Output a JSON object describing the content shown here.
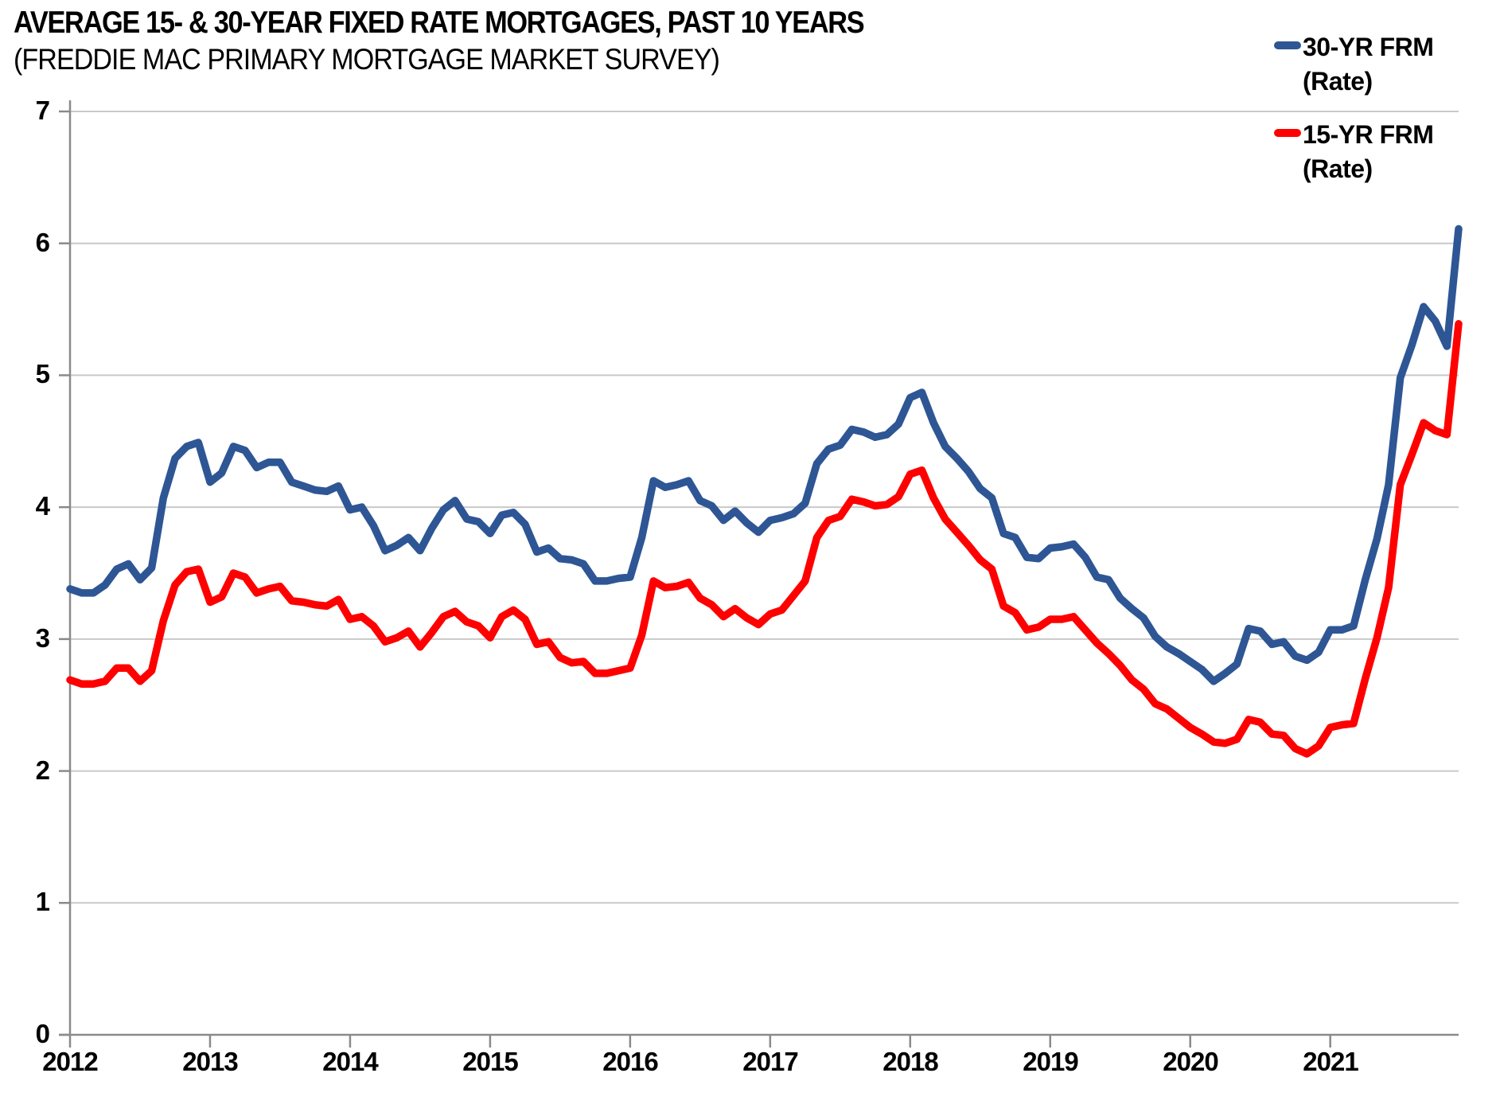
{
  "chart_data": {
    "type": "line",
    "title": "AVERAGE 15- & 30-YEAR FIXED RATE MORTGAGES, PAST 10 YEARS",
    "subtitle": "(FREDDIE MAC PRIMARY MORTGAGE MARKET SURVEY)",
    "ylim": [
      0,
      7
    ],
    "y_ticks": [
      "0",
      "1",
      "2",
      "3",
      "4",
      "5",
      "6",
      "7"
    ],
    "x_tick_labels": [
      "2012",
      "2013",
      "2014",
      "2015",
      "2016",
      "2017",
      "2018",
      "2019",
      "2020",
      "2021"
    ],
    "grid": "horizontal",
    "legend_position": "top-right",
    "colors": {
      "series_30yr": "#2E5695",
      "series_15yr": "#FE0000",
      "gridline": "#C9C9C9",
      "axis": "#8A8A8A",
      "text": "#000000"
    },
    "legend": [
      {
        "line1": "30-YR FRM",
        "line2": "(Rate)",
        "swatch_color": "#2E5695"
      },
      {
        "line1": "15-YR FRM",
        "line2": "(Rate)",
        "swatch_color": "#FE0000"
      }
    ],
    "series": [
      {
        "name": "30-YR FRM (Rate)",
        "color": "#2E5695",
        "values": [
          3.38,
          3.35,
          3.35,
          3.41,
          3.53,
          3.57,
          3.45,
          3.54,
          4.07,
          4.37,
          4.46,
          4.49,
          4.19,
          4.26,
          4.46,
          4.43,
          4.3,
          4.34,
          4.34,
          4.19,
          4.16,
          4.13,
          4.12,
          4.16,
          3.98,
          4.0,
          3.86,
          3.67,
          3.71,
          3.77,
          3.67,
          3.84,
          3.98,
          4.05,
          3.91,
          3.89,
          3.8,
          3.94,
          3.96,
          3.87,
          3.66,
          3.69,
          3.61,
          3.6,
          3.57,
          3.44,
          3.44,
          3.46,
          3.47,
          3.77,
          4.2,
          4.15,
          4.17,
          4.2,
          4.05,
          4.01,
          3.9,
          3.97,
          3.88,
          3.81,
          3.9,
          3.92,
          3.95,
          4.03,
          4.33,
          4.44,
          4.47,
          4.59,
          4.57,
          4.53,
          4.55,
          4.63,
          4.83,
          4.87,
          4.64,
          4.46,
          4.37,
          4.27,
          4.14,
          4.07,
          3.8,
          3.77,
          3.62,
          3.61,
          3.69,
          3.7,
          3.72,
          3.62,
          3.47,
          3.45,
          3.31,
          3.23,
          3.16,
          3.02,
          2.94,
          2.89,
          2.83,
          2.77,
          2.68,
          2.74,
          2.81,
          3.08,
          3.06,
          2.96,
          2.98,
          2.87,
          2.84,
          2.9,
          3.07,
          3.07,
          3.1,
          3.45,
          3.76,
          4.17,
          4.98,
          5.23,
          5.52,
          5.41,
          5.22,
          6.11
        ]
      },
      {
        "name": "15-YR FRM (Rate)",
        "color": "#FE0000",
        "values": [
          2.69,
          2.66,
          2.66,
          2.68,
          2.78,
          2.78,
          2.68,
          2.76,
          3.14,
          3.41,
          3.51,
          3.53,
          3.28,
          3.32,
          3.5,
          3.47,
          3.35,
          3.38,
          3.4,
          3.29,
          3.28,
          3.26,
          3.25,
          3.3,
          3.15,
          3.17,
          3.1,
          2.98,
          3.01,
          3.06,
          2.94,
          3.05,
          3.17,
          3.21,
          3.13,
          3.1,
          3.01,
          3.17,
          3.22,
          3.15,
          2.96,
          2.98,
          2.86,
          2.82,
          2.83,
          2.74,
          2.74,
          2.76,
          2.78,
          3.03,
          3.44,
          3.39,
          3.4,
          3.43,
          3.31,
          3.26,
          3.17,
          3.23,
          3.16,
          3.11,
          3.19,
          3.22,
          3.33,
          3.44,
          3.77,
          3.9,
          3.93,
          4.06,
          4.04,
          4.01,
          4.02,
          4.08,
          4.25,
          4.28,
          4.07,
          3.91,
          3.81,
          3.71,
          3.6,
          3.53,
          3.25,
          3.2,
          3.07,
          3.09,
          3.15,
          3.15,
          3.17,
          3.07,
          2.97,
          2.89,
          2.8,
          2.69,
          2.62,
          2.51,
          2.47,
          2.4,
          2.33,
          2.28,
          2.22,
          2.21,
          2.24,
          2.39,
          2.37,
          2.28,
          2.27,
          2.17,
          2.13,
          2.19,
          2.33,
          2.35,
          2.36,
          2.7,
          3.01,
          3.39,
          4.17,
          4.4,
          4.64,
          4.58,
          4.55,
          5.39
        ]
      }
    ]
  }
}
